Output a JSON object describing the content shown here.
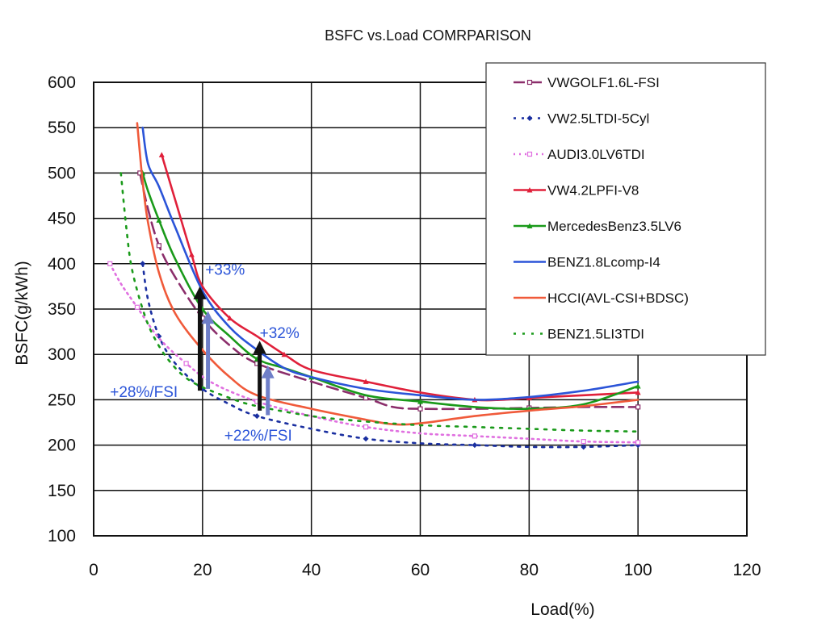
{
  "chart_data": {
    "type": "line",
    "title": "BSFC vs.Load COMRPARISON",
    "xlabel": "Load(%)",
    "ylabel": "BSFC(g/kWh)",
    "xlim": [
      0,
      120
    ],
    "ylim": [
      100,
      600
    ],
    "xticks": [
      "0",
      "20",
      "40",
      "60",
      "80",
      "100",
      "120"
    ],
    "yticks": [
      "100",
      "150",
      "200",
      "250",
      "300",
      "350",
      "400",
      "450",
      "500",
      "550",
      "600"
    ],
    "grid": true,
    "legend_position": "top-right",
    "series": [
      {
        "name": "VWGOLF1.6L-FSI",
        "color": "#8b2e6b",
        "dash": "14,7",
        "marker": "square",
        "points": [
          [
            8.5,
            500
          ],
          [
            10,
            460
          ],
          [
            12,
            420
          ],
          [
            15,
            385
          ],
          [
            20,
            340
          ],
          [
            25,
            310
          ],
          [
            30,
            290
          ],
          [
            40,
            270
          ],
          [
            50,
            252
          ],
          [
            55,
            242
          ],
          [
            60,
            240
          ],
          [
            70,
            240
          ],
          [
            80,
            241
          ],
          [
            90,
            242
          ],
          [
            100,
            242
          ]
        ]
      },
      {
        "name": "VW2.5LTDI-5Cyl",
        "color": "#1a2fa0",
        "dash": "3,7",
        "marker": "diamond",
        "points": [
          [
            9,
            400
          ],
          [
            10,
            360
          ],
          [
            12,
            320
          ],
          [
            15,
            290
          ],
          [
            20,
            262
          ],
          [
            25,
            245
          ],
          [
            30,
            232
          ],
          [
            40,
            218
          ],
          [
            50,
            207
          ],
          [
            60,
            202
          ],
          [
            70,
            200
          ],
          [
            80,
            198
          ],
          [
            90,
            198
          ],
          [
            100,
            200
          ]
        ]
      },
      {
        "name": "AUDI3.0LV6TDI",
        "color": "#e070e0",
        "dash": "2,5",
        "marker": "square",
        "points": [
          [
            3,
            400
          ],
          [
            5,
            378
          ],
          [
            8,
            352
          ],
          [
            12,
            318
          ],
          [
            17,
            290
          ],
          [
            22,
            268
          ],
          [
            30,
            248
          ],
          [
            40,
            232
          ],
          [
            50,
            220
          ],
          [
            60,
            213
          ],
          [
            70,
            210
          ],
          [
            80,
            207
          ],
          [
            90,
            204
          ],
          [
            100,
            203
          ]
        ]
      },
      {
        "name": "VW4.2LPFI-V8",
        "color": "#e0203a",
        "dash": "",
        "marker": "triangle",
        "points": [
          [
            12.5,
            520
          ],
          [
            15,
            470
          ],
          [
            18,
            410
          ],
          [
            20,
            375
          ],
          [
            25,
            340
          ],
          [
            30,
            320
          ],
          [
            35,
            300
          ],
          [
            40,
            283
          ],
          [
            50,
            270
          ],
          [
            60,
            258
          ],
          [
            70,
            250
          ],
          [
            75,
            250
          ],
          [
            80,
            252
          ],
          [
            90,
            255
          ],
          [
            100,
            258
          ]
        ]
      },
      {
        "name": "MercedesBenz3.5LV6",
        "color": "#1a9a1a",
        "dash": "",
        "marker": "triangle",
        "points": [
          [
            9,
            500
          ],
          [
            10,
            480
          ],
          [
            12,
            448
          ],
          [
            15,
            405
          ],
          [
            20,
            350
          ],
          [
            25,
            320
          ],
          [
            30,
            295
          ],
          [
            35,
            285
          ],
          [
            40,
            275
          ],
          [
            50,
            255
          ],
          [
            60,
            248
          ],
          [
            70,
            242
          ],
          [
            80,
            240
          ],
          [
            90,
            245
          ],
          [
            100,
            265
          ]
        ]
      },
      {
        "name": "BENZ1.8Lcomp-I4",
        "color": "#2b54d8",
        "dash": "",
        "marker": "none",
        "points": [
          [
            9,
            550
          ],
          [
            10,
            510
          ],
          [
            12,
            485
          ],
          [
            15,
            440
          ],
          [
            20,
            370
          ],
          [
            25,
            330
          ],
          [
            30,
            305
          ],
          [
            35,
            285
          ],
          [
            40,
            275
          ],
          [
            50,
            262
          ],
          [
            60,
            255
          ],
          [
            70,
            250
          ],
          [
            80,
            253
          ],
          [
            90,
            260
          ],
          [
            100,
            270
          ]
        ]
      },
      {
        "name": "HCCI(AVL-CSI+BDSC)",
        "color": "#f05a3a",
        "dash": "",
        "marker": "none",
        "points": [
          [
            8,
            555
          ],
          [
            9,
            490
          ],
          [
            10,
            445
          ],
          [
            12,
            390
          ],
          [
            15,
            345
          ],
          [
            20,
            305
          ],
          [
            25,
            275
          ],
          [
            30,
            255
          ],
          [
            40,
            240
          ],
          [
            50,
            228
          ],
          [
            55,
            223
          ],
          [
            60,
            224
          ],
          [
            70,
            232
          ],
          [
            80,
            238
          ],
          [
            90,
            243
          ],
          [
            100,
            250
          ]
        ]
      },
      {
        "name": "BENZ1.5LI3TDI",
        "color": "#1a9a1a",
        "dash": "3,8",
        "marker": "none",
        "points": [
          [
            5,
            500
          ],
          [
            6,
            440
          ],
          [
            7,
            395
          ],
          [
            9,
            350
          ],
          [
            11,
            320
          ],
          [
            14,
            292
          ],
          [
            18,
            270
          ],
          [
            25,
            252
          ],
          [
            30,
            243
          ],
          [
            40,
            232
          ],
          [
            50,
            226
          ],
          [
            60,
            222
          ],
          [
            70,
            220
          ],
          [
            80,
            218
          ],
          [
            90,
            216
          ],
          [
            100,
            215
          ]
        ]
      }
    ],
    "arrows": [
      {
        "color": "#111111",
        "x": 19.5,
        "from": 260,
        "to": 375
      },
      {
        "color": "#6f7fc8",
        "x": 21,
        "from": 262,
        "to": 348
      },
      {
        "color": "#111111",
        "x": 30.5,
        "from": 238,
        "to": 315
      },
      {
        "color": "#6f7fc8",
        "x": 32,
        "from": 233,
        "to": 288
      }
    ],
    "annotations": [
      {
        "text": "+33%",
        "x": 20.5,
        "y": 388
      },
      {
        "text": "+32%",
        "x": 30.5,
        "y": 318
      },
      {
        "text": "+28%/FSI",
        "x": 3,
        "y": 253
      },
      {
        "text": "+22%/FSI",
        "x": 24,
        "y": 205
      }
    ]
  }
}
